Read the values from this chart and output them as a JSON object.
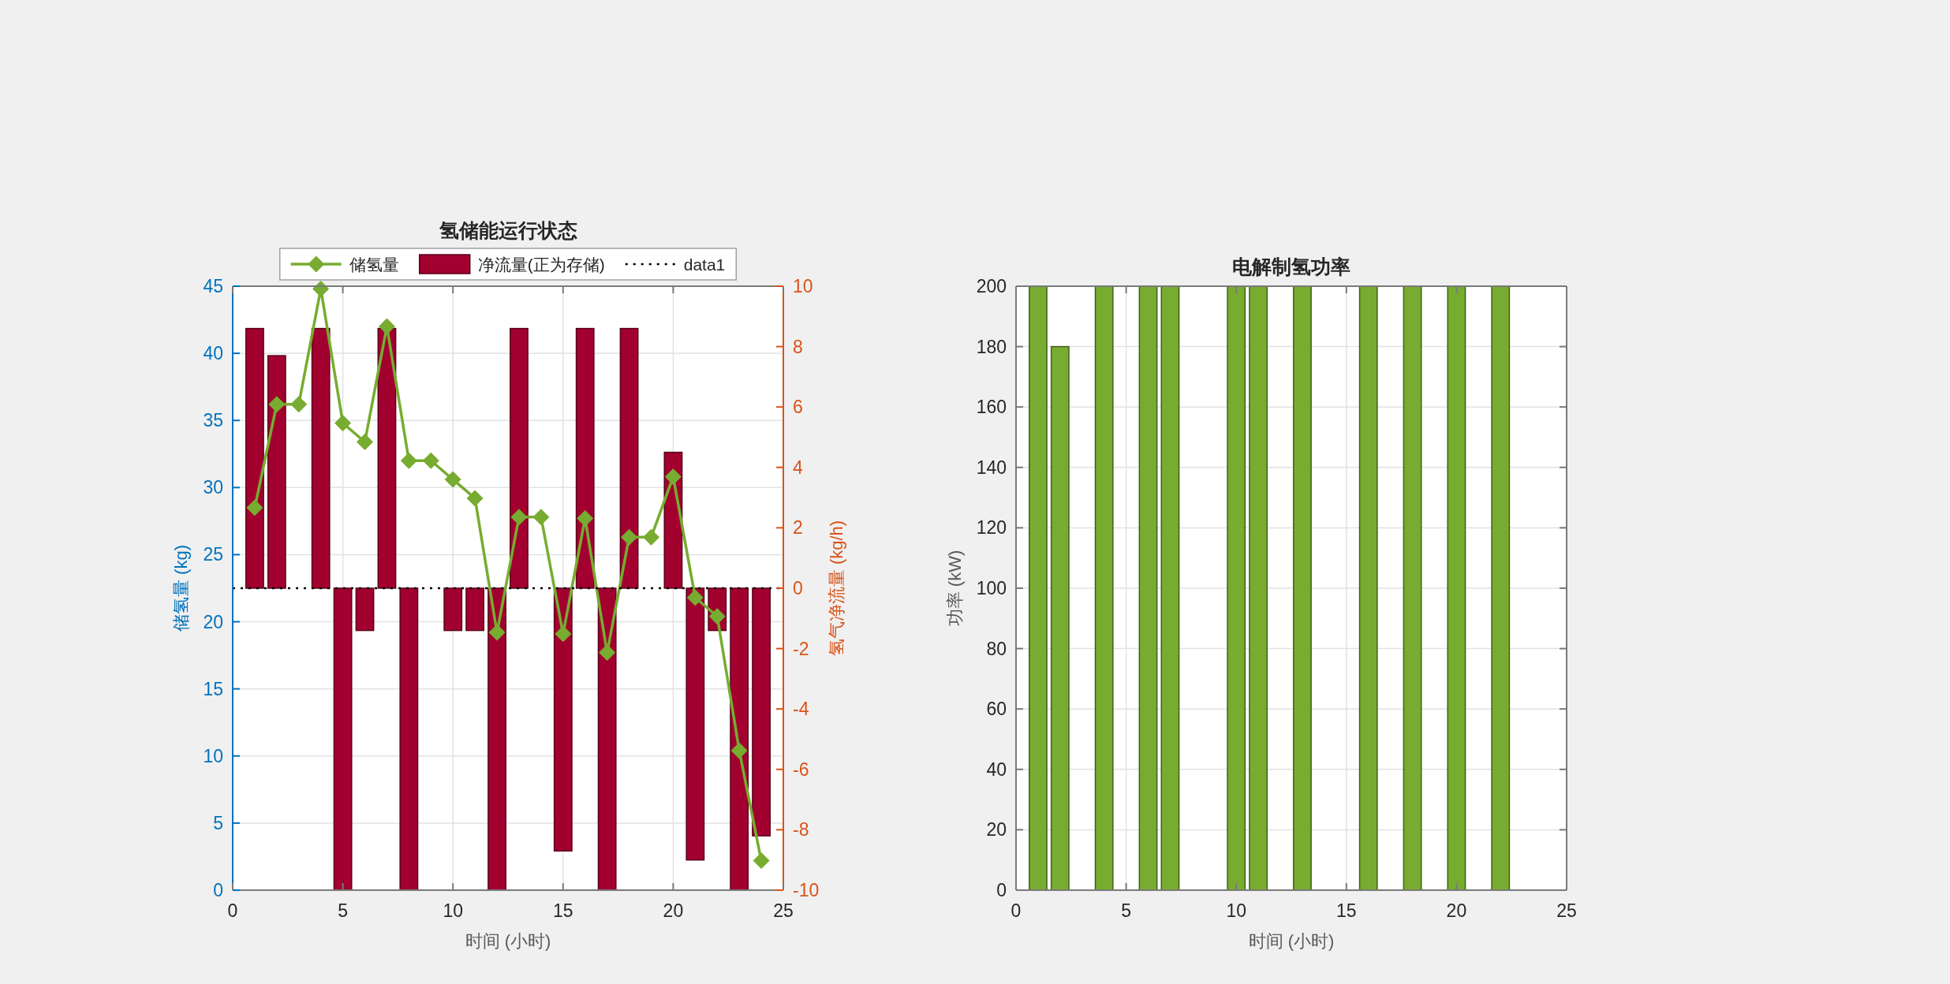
{
  "chart_data": [
    {
      "type": "bar",
      "title": "氢储能运行状态",
      "xlabel": "时间 (小时)",
      "ylabel": "储氢量 (kg)",
      "y2label": "氢气净流量 (kg/h)",
      "x": [
        1,
        2,
        3,
        4,
        5,
        6,
        7,
        8,
        9,
        10,
        11,
        12,
        13,
        14,
        15,
        16,
        17,
        18,
        19,
        20,
        21,
        22,
        23,
        24
      ],
      "xlim": [
        0,
        25
      ],
      "xticks": [
        0,
        5,
        10,
        15,
        20,
        25
      ],
      "ylim": [
        0,
        45
      ],
      "yticks": [
        0,
        5,
        10,
        15,
        20,
        25,
        30,
        35,
        40,
        45
      ],
      "y2lim": [
        -10,
        10
      ],
      "y2ticks": [
        -10,
        -8,
        -6,
        -4,
        -2,
        0,
        2,
        4,
        6,
        8,
        10
      ],
      "series": [
        {
          "name": "储氢量",
          "type": "line",
          "color": "#77ac30",
          "marker": "diamond",
          "values": [
            28.5,
            36.2,
            36.2,
            44.8,
            34.8,
            33.4,
            42.0,
            32.0,
            32.0,
            30.6,
            29.2,
            19.2,
            27.8,
            27.8,
            19.1,
            27.7,
            17.7,
            26.3,
            26.3,
            30.8,
            21.8,
            20.4,
            10.4,
            2.2
          ]
        },
        {
          "name": "净流量(正为存储)",
          "type": "bar",
          "axis": "y2",
          "color": "#a2002f",
          "values": [
            8.6,
            7.7,
            0,
            8.6,
            -10,
            -1.4,
            8.6,
            -10,
            0,
            -1.4,
            -1.4,
            -10,
            8.6,
            0,
            -8.7,
            8.6,
            -10,
            8.6,
            0,
            4.5,
            -9.0,
            -1.4,
            -10,
            -8.2
          ]
        },
        {
          "name": "data1",
          "type": "line",
          "axis": "y2",
          "color": "#000000",
          "line_style": "dotted",
          "x": [
            0,
            25
          ],
          "values": [
            0,
            0
          ]
        }
      ],
      "grid": true,
      "legend": "top"
    },
    {
      "type": "bar",
      "title": "电解制氢功率",
      "xlabel": "时间 (小时)",
      "ylabel": "功率 (kW)",
      "x": [
        1,
        2,
        3,
        4,
        5,
        6,
        7,
        8,
        9,
        10,
        11,
        12,
        13,
        14,
        15,
        16,
        17,
        18,
        19,
        20,
        21,
        22,
        23,
        24
      ],
      "values": [
        200,
        180,
        0,
        200,
        0,
        200,
        200,
        0,
        0,
        200,
        200,
        0,
        200,
        0,
        0,
        200,
        0,
        200,
        0,
        200,
        0,
        200,
        0,
        0
      ],
      "color": "#77ac30",
      "xlim": [
        0,
        25
      ],
      "xticks": [
        0,
        5,
        10,
        15,
        20,
        25
      ],
      "ylim": [
        0,
        200
      ],
      "yticks": [
        0,
        20,
        40,
        60,
        80,
        100,
        120,
        140,
        160,
        180,
        200
      ],
      "grid": true
    }
  ]
}
